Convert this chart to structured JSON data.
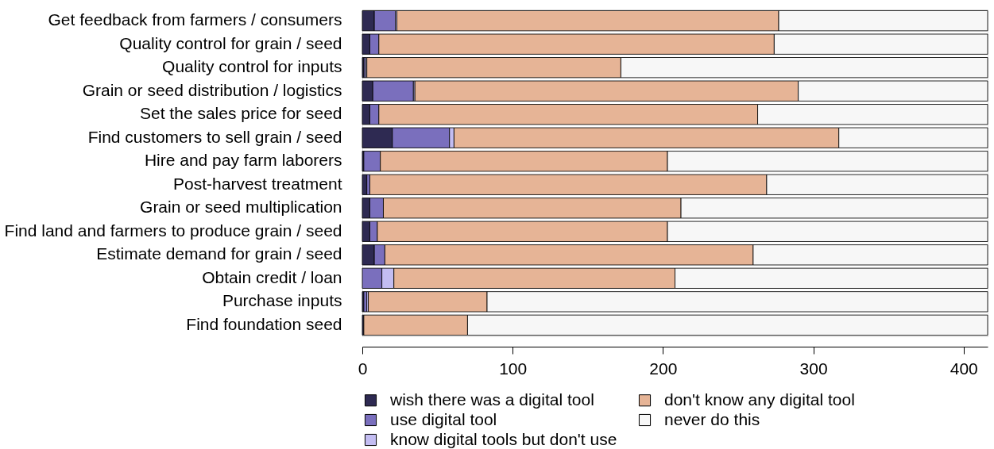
{
  "chart_data": {
    "type": "bar",
    "orientation": "horizontal",
    "stacked": true,
    "categories": [
      "Get feedback from farmers / consumers",
      "Quality control for grain / seed",
      "Quality control for inputs",
      "Grain or seed distribution / logistics",
      "Set the sales price for seed",
      "Find customers to sell grain / seed",
      "Hire and pay farm laborers",
      "Post-harvest treatment",
      "Grain or seed multiplication",
      "Find land and farmers to produce grain / seed",
      "Estimate demand for grain / seed",
      "Obtain credit / loan",
      "Purchase inputs",
      "Find foundation seed"
    ],
    "series": [
      {
        "name": "wish there was a digital tool",
        "color": "#2e2a52",
        "values": [
          8,
          5,
          1,
          7,
          5,
          20,
          1,
          3,
          5,
          5,
          8,
          0,
          1,
          1
        ]
      },
      {
        "name": "use digital tool",
        "color": "#7a6fbd",
        "values": [
          14,
          6,
          1,
          27,
          6,
          38,
          11,
          2,
          9,
          5,
          7,
          13,
          2,
          0
        ]
      },
      {
        "name": "know digital tools but don't use",
        "color": "#c3bdf2",
        "values": [
          1,
          0,
          1,
          1,
          0,
          3,
          0,
          0,
          0,
          0,
          0,
          8,
          1,
          0
        ]
      },
      {
        "name": "don't know any digital tool",
        "color": "#e6b496",
        "values": [
          254,
          263,
          169,
          255,
          252,
          256,
          191,
          264,
          198,
          193,
          245,
          187,
          79,
          69
        ]
      },
      {
        "name": "never do this",
        "color": "#f7f7f7",
        "values": [
          139,
          142,
          244,
          126,
          153,
          99,
          213,
          147,
          204,
          213,
          156,
          208,
          333,
          346
        ]
      }
    ],
    "xlim": [
      0,
      416
    ],
    "xticks": [
      0,
      100,
      200,
      300,
      400
    ],
    "grid": false,
    "legend": "bottom"
  }
}
